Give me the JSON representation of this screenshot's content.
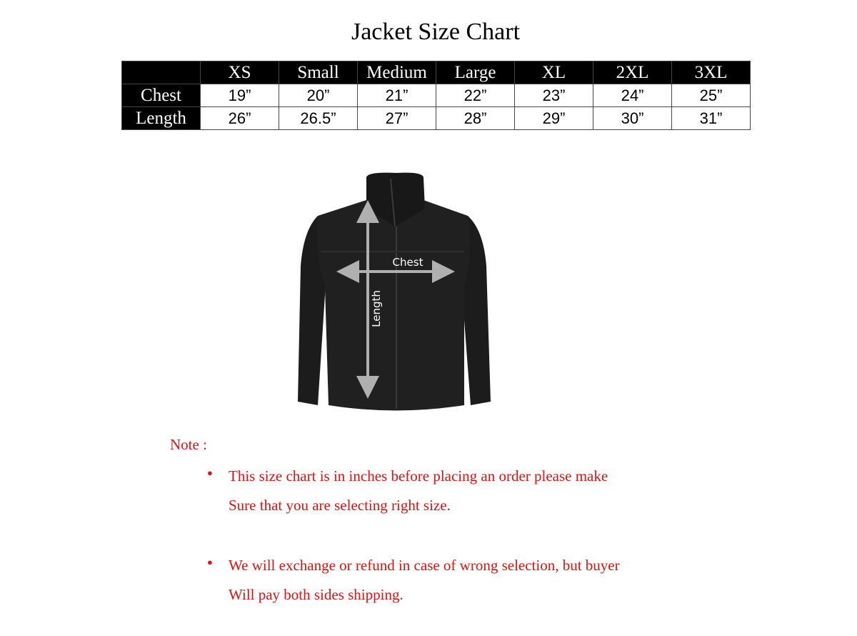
{
  "title": "Jacket Size Chart",
  "size_table": {
    "columns": [
      "",
      "XS",
      "Small",
      "Medium",
      "Large",
      "XL",
      "2XL",
      "3XL"
    ],
    "rows": [
      {
        "label": "Chest",
        "values": [
          "19”",
          "20”",
          "21”",
          "22”",
          "23”",
          "24”",
          "25”"
        ]
      },
      {
        "label": "Length",
        "values": [
          "26”",
          "26.5”",
          "27”",
          "28”",
          "29”",
          "30”",
          "31”"
        ]
      }
    ]
  },
  "diagram": {
    "chest_label": "Chest",
    "length_label": "Length"
  },
  "notes": {
    "heading": "Note :",
    "items": [
      {
        "line1": "This size chart is in inches before placing an order please make",
        "line2": "Sure that you are selecting right size."
      },
      {
        "line1": "We will exchange or refund in case of wrong selection, but buyer",
        "line2": "Will pay both sides shipping."
      }
    ],
    "color": "#e31010"
  }
}
